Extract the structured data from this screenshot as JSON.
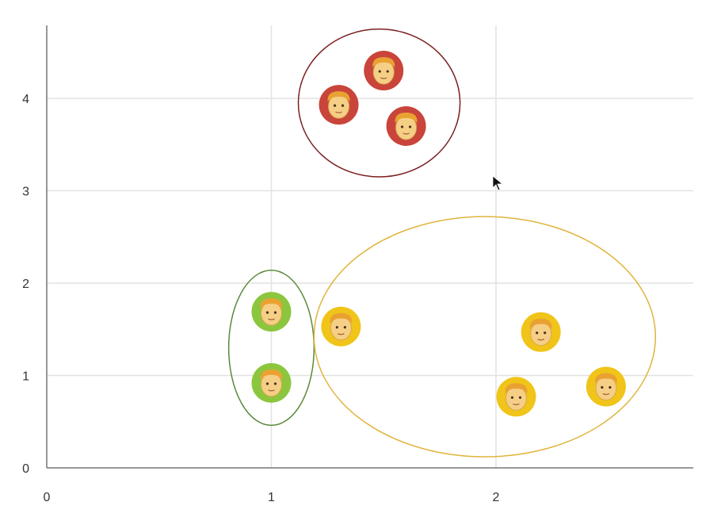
{
  "chart_data": {
    "type": "scatter",
    "title": "",
    "xlabel": "",
    "ylabel": "",
    "xlim": [
      0,
      2.9
    ],
    "ylim": [
      0,
      4.6
    ],
    "grid": true,
    "x_ticks": [
      "0",
      "1",
      "2"
    ],
    "y_ticks": [
      "0",
      "1",
      "2",
      "3",
      "4"
    ],
    "series": [
      {
        "color": "#c9443a",
        "points": [
          {
            "x": 1.3,
            "y": 3.93
          },
          {
            "x": 1.5,
            "y": 4.3
          },
          {
            "x": 1.6,
            "y": 3.7
          }
        ]
      },
      {
        "color": "#8cc63e",
        "points": [
          {
            "x": 1.0,
            "y": 1.69
          },
          {
            "x": 1.0,
            "y": 0.92
          }
        ]
      },
      {
        "color": "#f0c419",
        "points": [
          {
            "x": 1.31,
            "y": 1.53
          },
          {
            "x": 2.2,
            "y": 1.47
          },
          {
            "x": 2.09,
            "y": 0.77
          },
          {
            "x": 2.49,
            "y": 0.88
          }
        ]
      }
    ],
    "clusters": [
      {
        "cx": 1.48,
        "cy": 3.95,
        "rx": 0.36,
        "ry": 0.8,
        "color": "#7a1f1f"
      },
      {
        "cx": 1.0,
        "cy": 1.3,
        "rx": 0.19,
        "ry": 0.84,
        "color": "#5b8a3a"
      },
      {
        "cx": 1.95,
        "cy": 1.42,
        "rx": 0.76,
        "ry": 1.3,
        "color": "#e0b43c"
      }
    ],
    "marker_icon": "man-face-icon"
  }
}
